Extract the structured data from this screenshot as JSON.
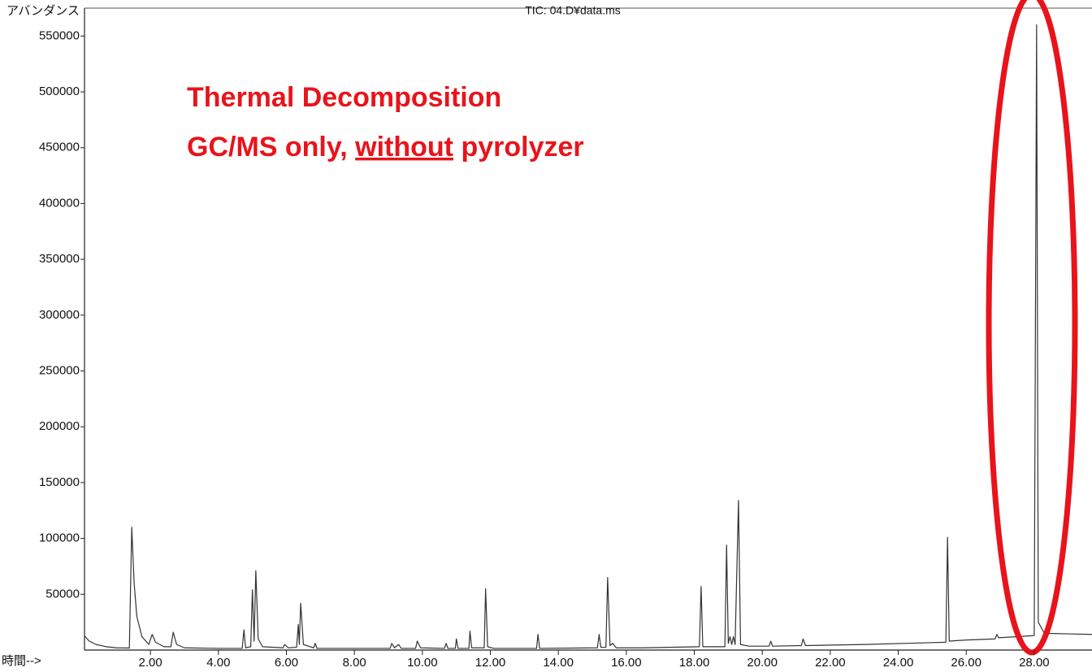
{
  "chart_data": {
    "type": "line",
    "title": "TIC: 04.D¥data.ms",
    "ylabel": "アバンダンス",
    "xlabel": "時間-->",
    "annotations": [
      "Thermal Decomposition",
      "GC/MS only, ",
      "without",
      " pyrolyzer"
    ],
    "color": "#333333",
    "highlight_color": "#e8141b",
    "xlim": [
      0.06,
      29.7
    ],
    "ylim": [
      0,
      575000
    ],
    "xticks": [
      {
        "value": 2,
        "label": "2.00"
      },
      {
        "value": 4,
        "label": "4.00"
      },
      {
        "value": 6,
        "label": "6.00"
      },
      {
        "value": 8,
        "label": "8.00"
      },
      {
        "value": 10,
        "label": "10.00"
      },
      {
        "value": 12,
        "label": "12.00"
      },
      {
        "value": 14,
        "label": "14.00"
      },
      {
        "value": 16,
        "label": "16.00"
      },
      {
        "value": 18,
        "label": "18.00"
      },
      {
        "value": 20,
        "label": "20.00"
      },
      {
        "value": 22,
        "label": "22.00"
      },
      {
        "value": 24,
        "label": "24.00"
      },
      {
        "value": 26,
        "label": "26.00"
      },
      {
        "value": 28,
        "label": "28.00"
      }
    ],
    "yticks": [
      50000,
      100000,
      150000,
      200000,
      250000,
      300000,
      350000,
      400000,
      450000,
      500000,
      550000
    ],
    "x": [
      0.06,
      0.2,
      0.4,
      0.7,
      1.0,
      1.38,
      1.45,
      1.52,
      1.6,
      1.75,
      1.95,
      2.05,
      2.15,
      2.4,
      2.6,
      2.67,
      2.77,
      3.0,
      4.0,
      4.7,
      4.75,
      4.8,
      4.95,
      5.0,
      5.05,
      5.1,
      5.17,
      5.3,
      5.9,
      5.95,
      6.05,
      6.3,
      6.35,
      6.38,
      6.42,
      6.5,
      6.8,
      6.85,
      6.9,
      9.05,
      9.1,
      9.18,
      9.3,
      9.38,
      9.8,
      9.85,
      9.95,
      10.65,
      10.7,
      10.75,
      10.97,
      11.0,
      11.05,
      11.37,
      11.4,
      11.45,
      11.82,
      11.86,
      11.92,
      12.1,
      13.36,
      13.4,
      13.45,
      15.15,
      15.2,
      15.25,
      15.4,
      15.45,
      15.52,
      15.6,
      15.7,
      16.5,
      18.15,
      18.2,
      18.25,
      18.9,
      18.95,
      19.0,
      19.05,
      19.1,
      19.15,
      19.2,
      19.3,
      19.36,
      19.6,
      20.2,
      20.25,
      20.3,
      21.15,
      21.2,
      21.27,
      23.0,
      25.4,
      25.45,
      25.5,
      26.0,
      26.85,
      26.9,
      26.95,
      27.5,
      28.0,
      28.07,
      28.12,
      28.3,
      29.0,
      29.7
    ],
    "values": [
      12600,
      8000,
      5000,
      3000,
      2000,
      1800,
      110000,
      60000,
      30000,
      12000,
      5000,
      14000,
      7000,
      3000,
      3000,
      16000,
      5000,
      2000,
      1500,
      1500,
      18000,
      2000,
      3000,
      54000,
      8000,
      71000,
      10000,
      3000,
      2000,
      5000,
      2000,
      2500,
      23000,
      5000,
      42000,
      5000,
      2000,
      6000,
      1500,
      1500,
      6000,
      2000,
      5000,
      1500,
      1500,
      8000,
      2000,
      1500,
      6000,
      1500,
      1500,
      10000,
      1500,
      1500,
      17000,
      2000,
      2000,
      55000,
      3000,
      1500,
      1500,
      14000,
      1500,
      2000,
      14000,
      2500,
      2500,
      65000,
      4000,
      6000,
      2000,
      2000,
      3000,
      57000,
      3000,
      3000,
      94000,
      6000,
      12000,
      5000,
      12000,
      5000,
      134000,
      5000,
      3500,
      3500,
      8000,
      3500,
      4000,
      10000,
      4000,
      5000,
      7000,
      101000,
      8000,
      9000,
      10000,
      14000,
      11000,
      12000,
      13000,
      560000,
      25000,
      15000,
      14500,
      14000
    ]
  }
}
